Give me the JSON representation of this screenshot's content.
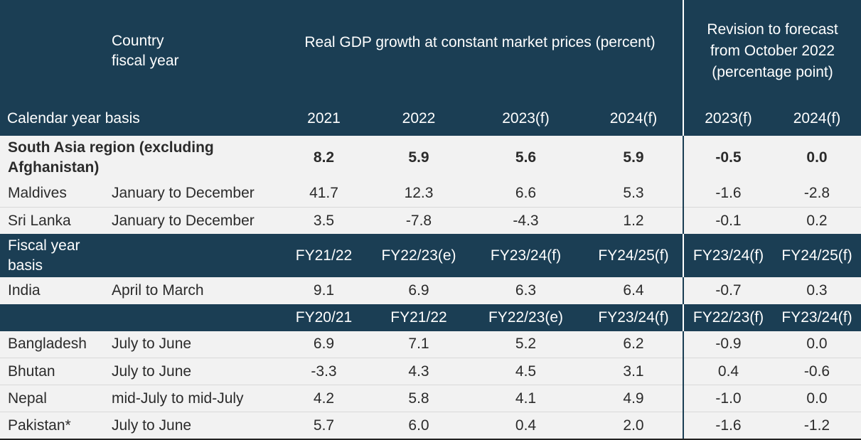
{
  "chart_data": {
    "type": "table",
    "header": {
      "country_label": "Country",
      "fiscal_year_label": "fiscal year",
      "real_gdp_label": "Real GDP growth at constant market prices (percent)",
      "revision_label": [
        "Revision to forecast",
        "from October 2022",
        "(percentage point)"
      ]
    },
    "calendar_section": {
      "label": "Calendar year basis",
      "columns": [
        "2021",
        "2022",
        "2023(f)",
        "2024(f)",
        "2023(f)",
        "2024(f)"
      ],
      "rows": [
        {
          "name": "South Asia region (excluding Afghanistan)",
          "period": "",
          "values": [
            "8.2",
            "5.9",
            "5.6",
            "5.9",
            "-0.5",
            "0.0"
          ]
        },
        {
          "name": "Maldives",
          "period": "January to December",
          "values": [
            "41.7",
            "12.3",
            "6.6",
            "5.3",
            "-1.6",
            "-2.8"
          ]
        },
        {
          "name": "Sri Lanka",
          "period": "January to December",
          "values": [
            "3.5",
            "-7.8",
            "-4.3",
            "1.2",
            "-0.1",
            "0.2"
          ]
        }
      ]
    },
    "fiscal_section_1": {
      "label": "Fiscal year basis",
      "columns": [
        "FY21/22",
        "FY22/23(e)",
        "FY23/24(f)",
        "FY24/25(f)",
        "FY23/24(f)",
        "FY24/25(f)"
      ],
      "rows": [
        {
          "name": "India",
          "period": "April to March",
          "values": [
            "9.1",
            "6.9",
            "6.3",
            "6.4",
            "-0.7",
            "0.3"
          ]
        }
      ]
    },
    "fiscal_section_2": {
      "label": "",
      "columns": [
        "FY20/21",
        "FY21/22",
        "FY22/23(e)",
        "FY23/24(f)",
        "FY22/23(f)",
        "FY23/24(f)"
      ],
      "rows": [
        {
          "name": "Bangladesh",
          "period": "July to June",
          "values": [
            "6.9",
            "7.1",
            "5.2",
            "6.2",
            "-0.9",
            "0.0"
          ]
        },
        {
          "name": "Bhutan",
          "period": "July to June",
          "values": [
            "-3.3",
            "4.3",
            "4.5",
            "3.1",
            "0.4",
            "-0.6"
          ]
        },
        {
          "name": "Nepal",
          "period": "mid-July to mid-July",
          "values": [
            "4.2",
            "5.8",
            "4.1",
            "4.9",
            "-1.0",
            "0.0"
          ]
        },
        {
          "name": "Pakistan*",
          "period": "July to June",
          "values": [
            "5.7",
            "6.0",
            "0.4",
            "2.0",
            "-1.6",
            "-1.2"
          ]
        }
      ]
    }
  }
}
